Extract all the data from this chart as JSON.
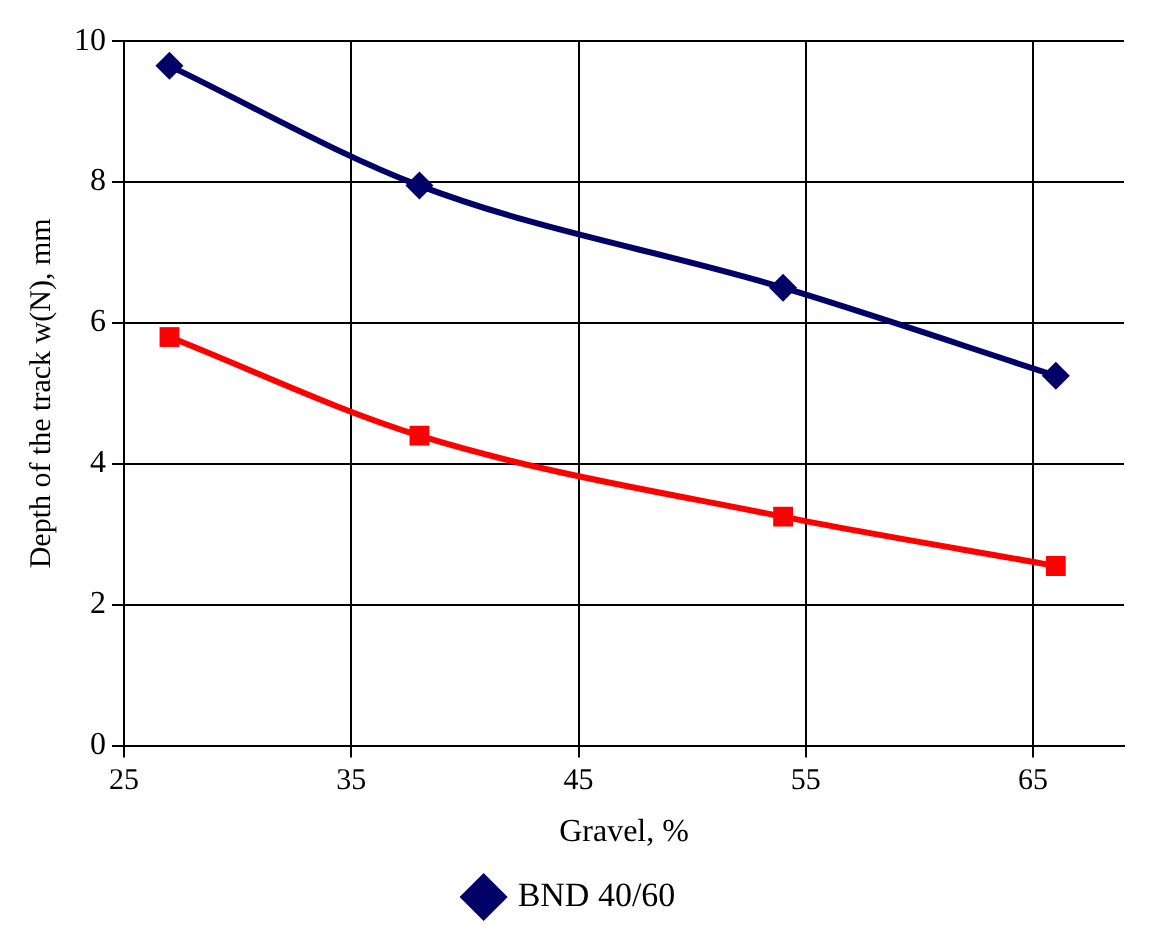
{
  "chart_data": {
    "type": "line",
    "xlabel": "Gravel, %",
    "ylabel": "Depth of the track w(N), mm",
    "xlim": [
      25,
      69
    ],
    "xticks": [
      25,
      35,
      45,
      55,
      65
    ],
    "ylim": [
      0,
      10
    ],
    "yticks": [
      0,
      2,
      4,
      6,
      8,
      10
    ],
    "grid": true,
    "legend": "bottom",
    "series": [
      {
        "name": "BND 40/60",
        "color": "#000066",
        "marker": "diamond",
        "x": [
          27,
          38,
          54,
          66
        ],
        "values": [
          9.65,
          7.95,
          6.5,
          5.25
        ]
      },
      {
        "color": "#ff0000",
        "marker": "square",
        "x": [
          27,
          38,
          54,
          66
        ],
        "values": [
          5.8,
          4.4,
          3.25,
          2.55
        ]
      }
    ]
  }
}
